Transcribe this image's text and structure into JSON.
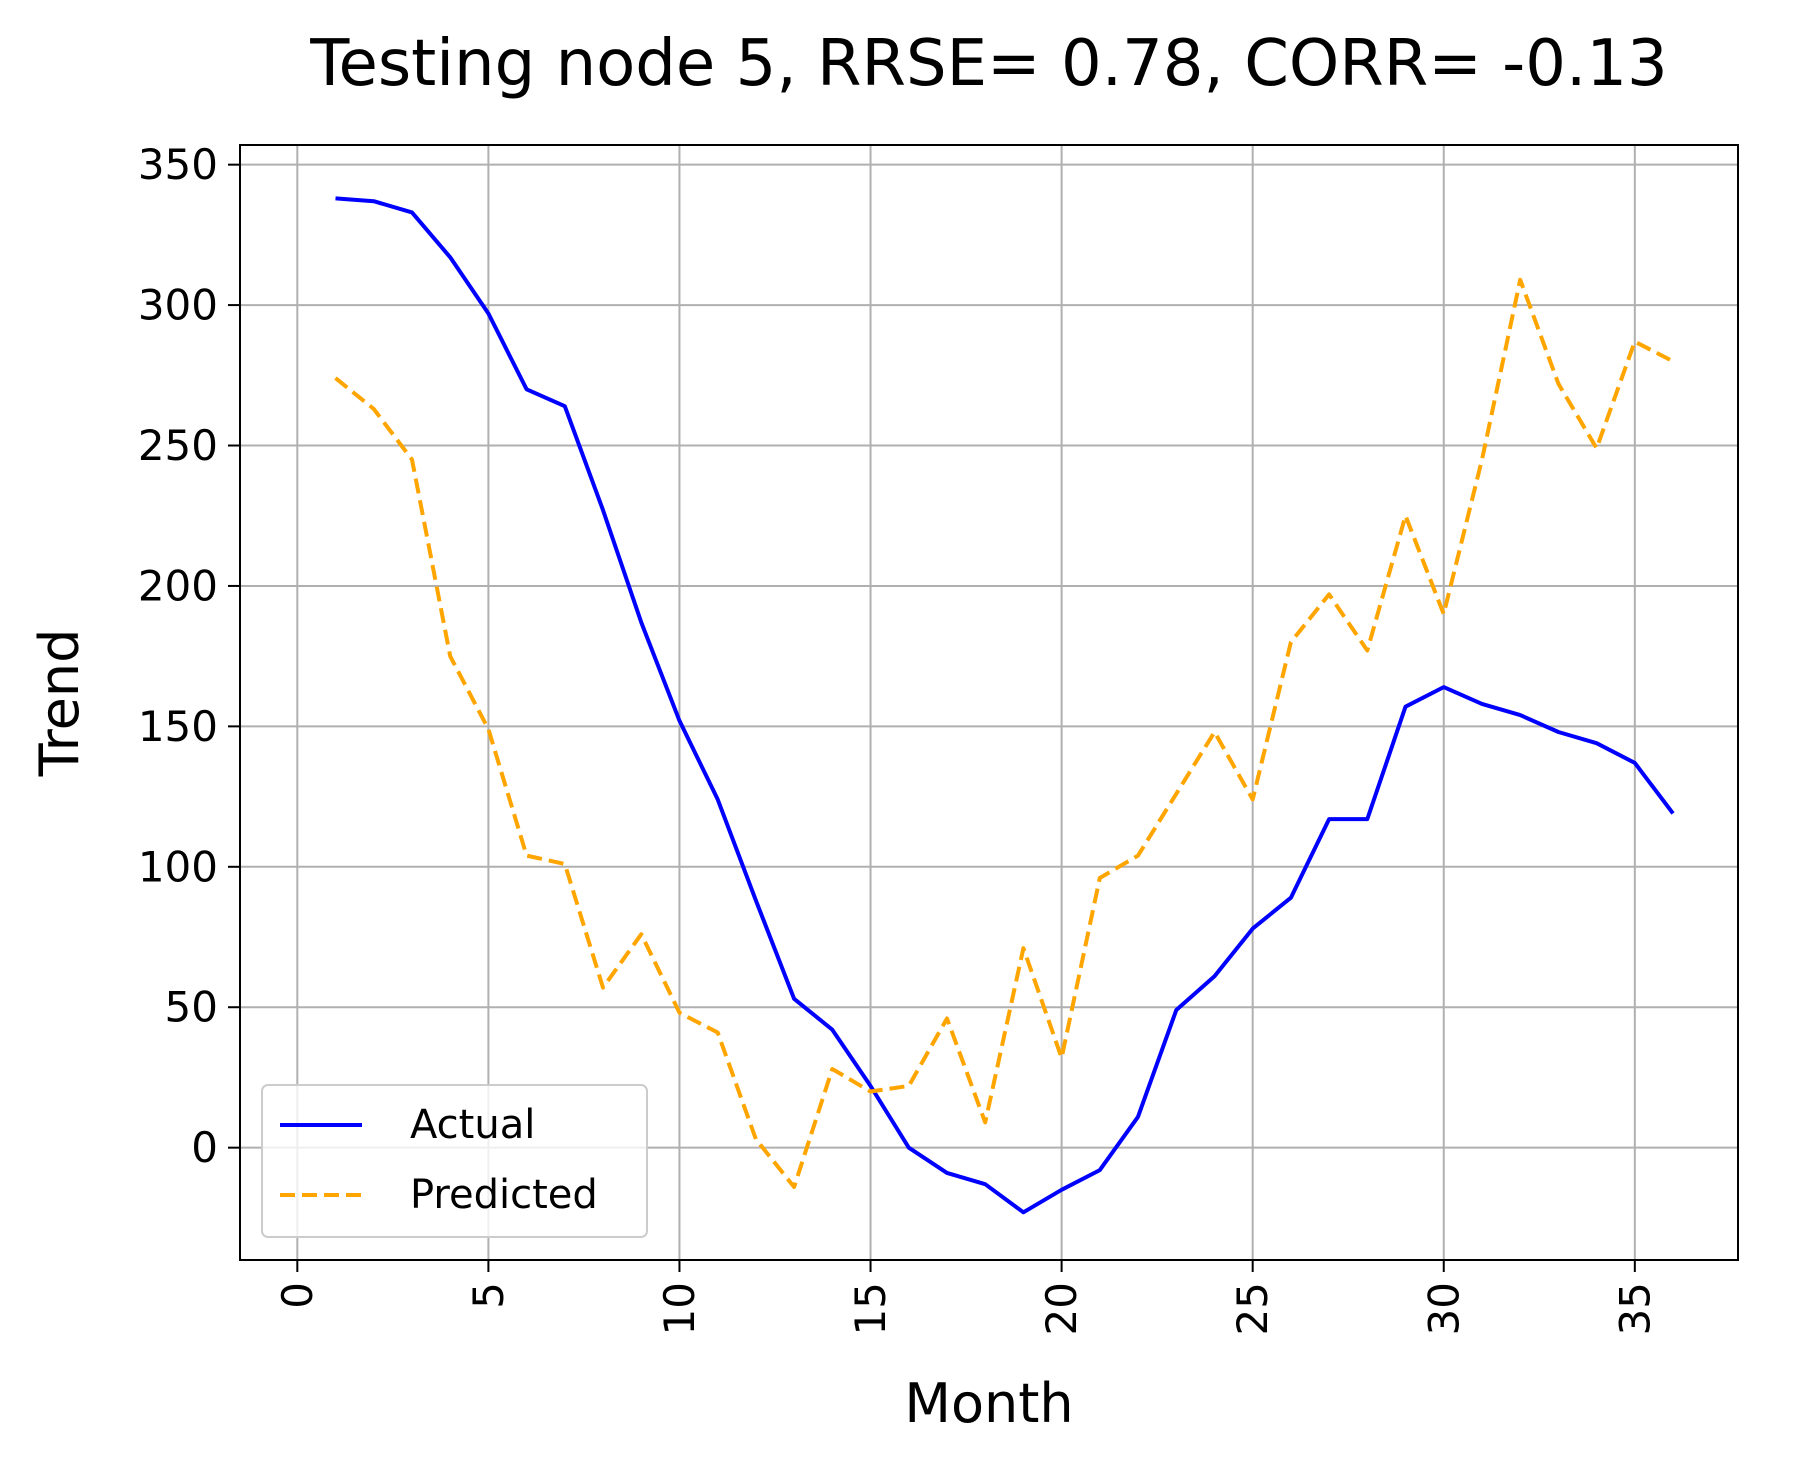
{
  "chart_data": {
    "type": "line",
    "title": "Testing node 5, RRSE= 0.78, CORR= -0.13",
    "xlabel": "Month",
    "ylabel": "Trend",
    "xlim": [
      -1.5,
      37.7
    ],
    "ylim": [
      -40,
      357
    ],
    "xticks": [
      0,
      5,
      10,
      15,
      20,
      25,
      30,
      35
    ],
    "yticks": [
      0,
      50,
      100,
      150,
      200,
      250,
      300,
      350
    ],
    "grid": true,
    "legend_position": "lower-left",
    "x": [
      1,
      2,
      3,
      4,
      5,
      6,
      7,
      8,
      9,
      10,
      11,
      12,
      13,
      14,
      15,
      16,
      17,
      18,
      19,
      20,
      21,
      22,
      23,
      24,
      25,
      26,
      27,
      28,
      29,
      30,
      31,
      32,
      33,
      34,
      35,
      36
    ],
    "series": [
      {
        "name": "Actual",
        "color": "#0000ff",
        "style": "solid",
        "values": [
          338,
          337,
          333,
          317,
          297,
          270,
          264,
          227,
          187,
          152,
          124,
          88,
          53,
          42,
          22,
          0,
          -9,
          -13,
          -23,
          -15,
          -8,
          11,
          49,
          61,
          78,
          89,
          117,
          117,
          157,
          164,
          158,
          154,
          148,
          144,
          137,
          119
        ]
      },
      {
        "name": "Predicted",
        "color": "#ffa500",
        "style": "dashed",
        "values": [
          274,
          263,
          245,
          175,
          149,
          104,
          101,
          57,
          76,
          48,
          41,
          3,
          -14,
          28,
          20,
          22,
          46,
          9,
          71,
          32,
          96,
          104,
          126,
          148,
          124,
          180,
          197,
          177,
          225,
          190,
          245,
          309,
          272,
          249,
          287,
          280
        ]
      }
    ]
  }
}
